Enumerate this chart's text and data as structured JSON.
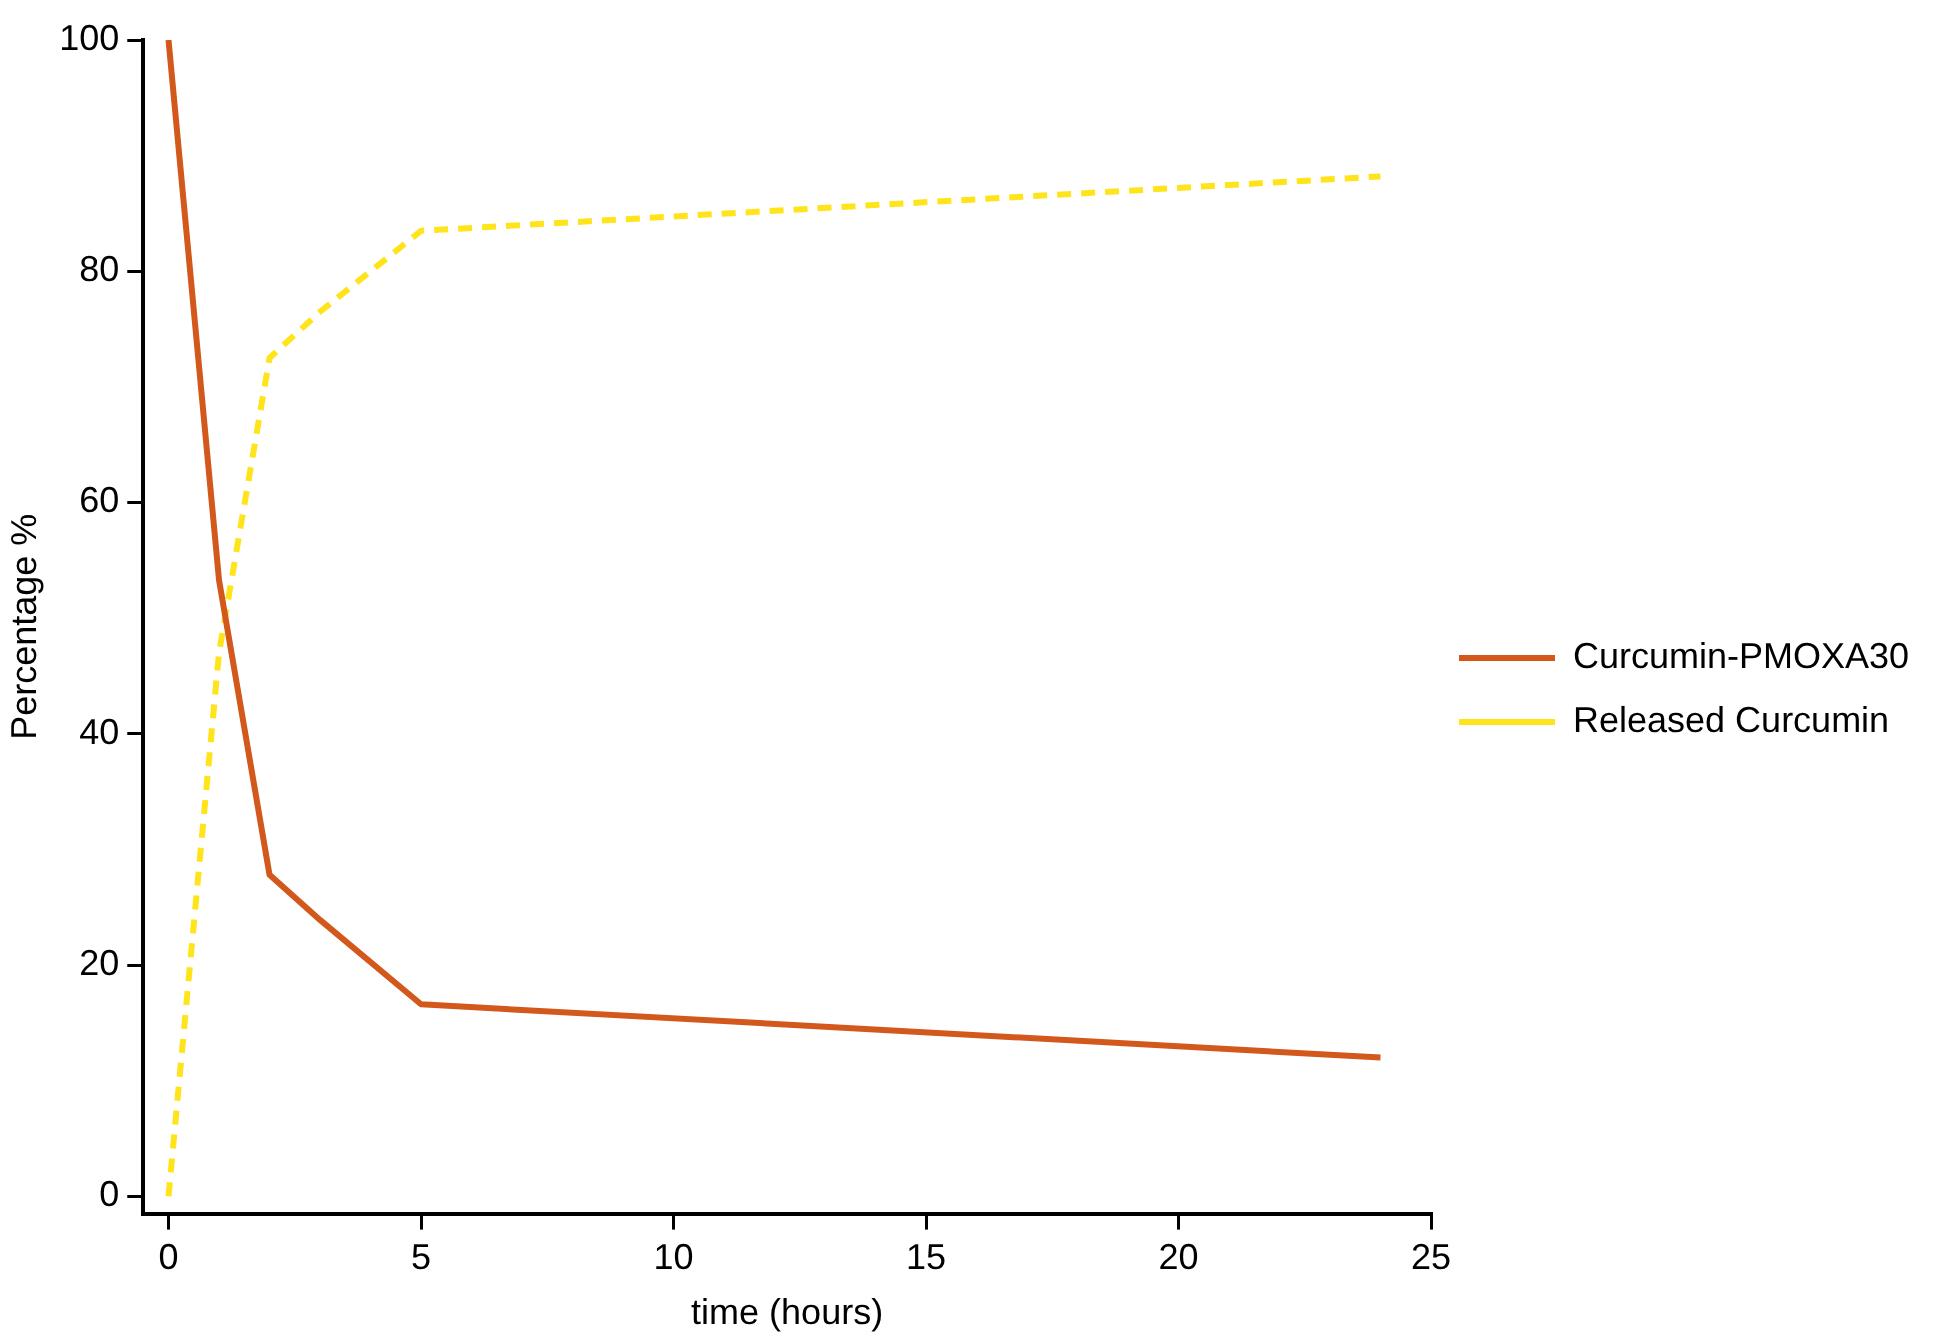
{
  "chart_data": {
    "type": "line",
    "xlabel": "time (hours)",
    "ylabel": "Percentage %",
    "x": [
      0,
      1,
      2,
      3,
      5,
      24
    ],
    "series": [
      {
        "name": "Curcumin-PMOXA30",
        "color": "#d2581c",
        "values": [
          100,
          53.3,
          27.8,
          23.9,
          16.6,
          12
        ],
        "line_style": "solid"
      },
      {
        "name": "Released Curcumin",
        "color": "#ffe41c",
        "values": [
          0,
          47,
          72.5,
          76.5,
          83.5,
          88.2
        ],
        "line_style": "dashed"
      }
    ],
    "xlim": [
      -0.5,
      25
    ],
    "xticks": [
      0,
      5,
      10,
      15,
      20,
      25
    ],
    "ylim": [
      -1.5,
      100
    ],
    "yticks": [
      0,
      20,
      40,
      60,
      80,
      100
    ],
    "grid": false,
    "legend": "right",
    "marker": "none"
  }
}
